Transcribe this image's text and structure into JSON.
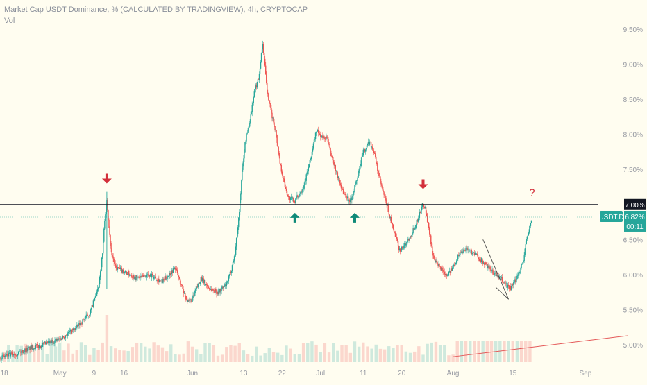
{
  "header": {
    "title": "Market Cap USDT Dominance, % (CALCULATED BY TRADINGVIEW), 4h, CRYPTOCAP",
    "volume_label": "Vol"
  },
  "colors": {
    "background": "#fffdf0",
    "up": "#26a69a",
    "down": "#ef5350",
    "level_line": "#131722",
    "price_line": "#26a69a",
    "arrow_up": "#0f8a78",
    "arrow_down": "#d32f3a",
    "axis_text": "#9598a1",
    "trend_line": "#e45858",
    "wedge_line": "#4a4a4a"
  },
  "chart_data": {
    "type": "candlestick",
    "symbol": "USDT.D",
    "interval": "4h",
    "y_axis": {
      "side": "right",
      "ticks": [
        "5.00%",
        "5.50%",
        "6.00%",
        "6.50%",
        "7.00%",
        "7.50%",
        "8.00%",
        "8.50%",
        "9.00%",
        "9.50%"
      ],
      "tick_values": [
        5.0,
        5.5,
        6.0,
        6.5,
        7.0,
        7.5,
        8.0,
        8.5,
        9.0,
        9.5
      ],
      "range": [
        4.8,
        9.7
      ]
    },
    "x_axis": {
      "ticks": [
        "18",
        "May",
        "9",
        "16",
        "Jun",
        "13",
        "22",
        "Jul",
        "11",
        "20",
        "Aug",
        "15",
        "Sep"
      ],
      "tick_days": [
        -13,
        0,
        8,
        15,
        31,
        43,
        52,
        61,
        71,
        80,
        92,
        106,
        123
      ],
      "range_days": [
        -14,
        133
      ],
      "start_date": "2022-04-18"
    },
    "grid": false,
    "series": [
      {
        "kind": "price_path",
        "points": [
          [
            -14,
            4.82
          ],
          [
            -10,
            4.88
          ],
          [
            -7,
            4.95
          ],
          [
            -4,
            5.0
          ],
          [
            0,
            5.08
          ],
          [
            4,
            5.25
          ],
          [
            7,
            5.45
          ],
          [
            9,
            5.8
          ],
          [
            10,
            6.3
          ],
          [
            10.5,
            6.8
          ],
          [
            11,
            7.05
          ],
          [
            11.5,
            6.7
          ],
          [
            12,
            6.35
          ],
          [
            13,
            6.1
          ],
          [
            15,
            6.05
          ],
          [
            18,
            5.95
          ],
          [
            21,
            6.0
          ],
          [
            24,
            5.9
          ],
          [
            27,
            6.1
          ],
          [
            29,
            5.75
          ],
          [
            30,
            5.6
          ],
          [
            31,
            5.65
          ],
          [
            33,
            5.95
          ],
          [
            35,
            5.8
          ],
          [
            37,
            5.75
          ],
          [
            39,
            5.85
          ],
          [
            40,
            6.05
          ],
          [
            41,
            6.3
          ],
          [
            42,
            6.9
          ],
          [
            42.7,
            7.5
          ],
          [
            43.4,
            7.9
          ],
          [
            44.5,
            8.2
          ],
          [
            45.5,
            8.6
          ],
          [
            46.5,
            8.8
          ],
          [
            47.5,
            9.3
          ],
          [
            48.5,
            8.6
          ],
          [
            49.5,
            8.3
          ],
          [
            50.5,
            8.05
          ],
          [
            51.5,
            7.6
          ],
          [
            52.5,
            7.3
          ],
          [
            53.5,
            7.1
          ],
          [
            55,
            7.05
          ],
          [
            57,
            7.25
          ],
          [
            58.5,
            7.6
          ],
          [
            60,
            8.05
          ],
          [
            61.5,
            7.95
          ],
          [
            62.5,
            7.95
          ],
          [
            63.5,
            7.7
          ],
          [
            65,
            7.4
          ],
          [
            66.5,
            7.15
          ],
          [
            68,
            7.05
          ],
          [
            69.5,
            7.35
          ],
          [
            71,
            7.75
          ],
          [
            72.5,
            7.9
          ],
          [
            73.5,
            7.75
          ],
          [
            74.5,
            7.45
          ],
          [
            75.5,
            7.2
          ],
          [
            76.5,
            7.0
          ],
          [
            77.5,
            6.75
          ],
          [
            78.5,
            6.55
          ],
          [
            79.5,
            6.35
          ],
          [
            80.5,
            6.4
          ],
          [
            82,
            6.55
          ],
          [
            83.5,
            6.75
          ],
          [
            85,
            7.02
          ],
          [
            85.5,
            6.95
          ],
          [
            86.5,
            6.6
          ],
          [
            87.5,
            6.2
          ],
          [
            89,
            6.1
          ],
          [
            90.5,
            6.0
          ],
          [
            91.5,
            6.05
          ],
          [
            93.5,
            6.3
          ],
          [
            95,
            6.38
          ],
          [
            97,
            6.3
          ],
          [
            99,
            6.18
          ],
          [
            101,
            6.05
          ],
          [
            103,
            5.95
          ],
          [
            104.5,
            5.85
          ],
          [
            105.5,
            5.8
          ],
          [
            106.5,
            5.9
          ],
          [
            107.5,
            6.05
          ],
          [
            108.5,
            6.2
          ],
          [
            109,
            6.45
          ],
          [
            109.5,
            6.55
          ],
          [
            110,
            6.7
          ],
          [
            110.5,
            6.82
          ]
        ]
      }
    ],
    "volume": {
      "baseline_range": [
        0.3,
        1.0
      ],
      "spike_day": 11,
      "note_level": "similar bars"
    },
    "last_price": "6.82%",
    "last_time": "00:11",
    "horizontal_level": {
      "value": 7.0,
      "label": "7.00%"
    },
    "annotations": [
      {
        "type": "arrow_down",
        "day": 11,
        "value": 7.3
      },
      {
        "type": "arrow_up",
        "day": 55,
        "value": 6.88
      },
      {
        "type": "arrow_up",
        "day": 69,
        "value": 6.88
      },
      {
        "type": "arrow_down",
        "day": 85,
        "value": 7.22
      },
      {
        "type": "text",
        "day": 110.5,
        "value": 7.12,
        "text": "?"
      }
    ],
    "drawings": [
      {
        "type": "trend_line",
        "from": [
          92,
          4.83
        ],
        "to": [
          133,
          5.13
        ]
      },
      {
        "type": "wedge",
        "points": [
          [
            99,
            6.5
          ],
          [
            105,
            5.65
          ],
          [
            102,
            5.82
          ]
        ]
      }
    ]
  }
}
